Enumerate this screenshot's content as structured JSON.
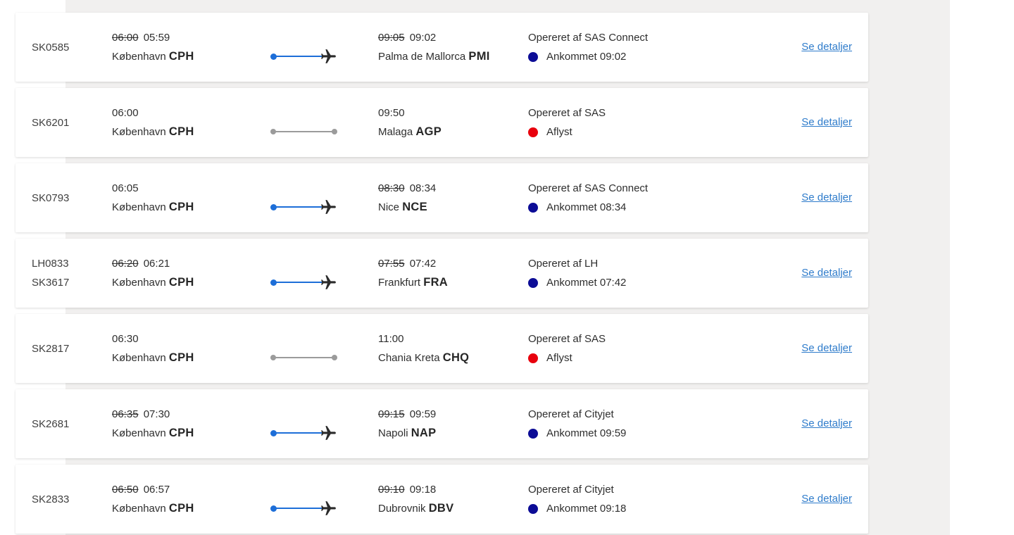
{
  "page": {
    "band_background": "#f1f0ef",
    "card_background": "#ffffff"
  },
  "colors": {
    "route_blue": "#1d6ed8",
    "route_gray": "#9b9b9b",
    "status_navy": "#0c0c96",
    "status_red": "#e8000d",
    "link_blue": "#2f7ccb",
    "text_dark": "#2e2e2e"
  },
  "labels": {
    "details_link": "Se detaljer",
    "plane_icon": "plane-icon"
  },
  "flights": [
    {
      "flight_numbers": [
        "SK0585"
      ],
      "departure": {
        "old_time": "06:00",
        "time": "05:59",
        "city": "København",
        "airport_code": "CPH"
      },
      "arrival": {
        "old_time": "09:05",
        "time": "09:02",
        "city": "Palma de Mallorca",
        "airport_code": "PMI"
      },
      "operated_by": "Opereret af SAS Connect",
      "status": {
        "label": "Ankommet 09:02",
        "type": "arrived"
      },
      "route_state": "completed"
    },
    {
      "flight_numbers": [
        "SK6201"
      ],
      "departure": {
        "old_time": null,
        "time": "06:00",
        "city": "København",
        "airport_code": "CPH"
      },
      "arrival": {
        "old_time": null,
        "time": "09:50",
        "city": "Malaga",
        "airport_code": "AGP"
      },
      "operated_by": "Opereret af SAS",
      "status": {
        "label": "Aflyst",
        "type": "cancelled"
      },
      "route_state": "cancelled"
    },
    {
      "flight_numbers": [
        "SK0793"
      ],
      "departure": {
        "old_time": null,
        "time": "06:05",
        "city": "København",
        "airport_code": "CPH"
      },
      "arrival": {
        "old_time": "08:30",
        "time": "08:34",
        "city": "Nice",
        "airport_code": "NCE"
      },
      "operated_by": "Opereret af SAS Connect",
      "status": {
        "label": "Ankommet 08:34",
        "type": "arrived"
      },
      "route_state": "completed"
    },
    {
      "flight_numbers": [
        "LH0833",
        "SK3617"
      ],
      "departure": {
        "old_time": "06:20",
        "time": "06:21",
        "city": "København",
        "airport_code": "CPH"
      },
      "arrival": {
        "old_time": "07:55",
        "time": "07:42",
        "city": "Frankfurt",
        "airport_code": "FRA"
      },
      "operated_by": "Opereret af LH",
      "status": {
        "label": "Ankommet 07:42",
        "type": "arrived"
      },
      "route_state": "completed"
    },
    {
      "flight_numbers": [
        "SK2817"
      ],
      "departure": {
        "old_time": null,
        "time": "06:30",
        "city": "København",
        "airport_code": "CPH"
      },
      "arrival": {
        "old_time": null,
        "time": "11:00",
        "city": "Chania Kreta",
        "airport_code": "CHQ"
      },
      "operated_by": "Opereret af SAS",
      "status": {
        "label": "Aflyst",
        "type": "cancelled"
      },
      "route_state": "cancelled"
    },
    {
      "flight_numbers": [
        "SK2681"
      ],
      "departure": {
        "old_time": "06:35",
        "time": "07:30",
        "city": "København",
        "airport_code": "CPH"
      },
      "arrival": {
        "old_time": "09:15",
        "time": "09:59",
        "city": "Napoli",
        "airport_code": "NAP"
      },
      "operated_by": "Opereret af Cityjet",
      "status": {
        "label": "Ankommet 09:59",
        "type": "arrived"
      },
      "route_state": "completed"
    },
    {
      "flight_numbers": [
        "SK2833"
      ],
      "departure": {
        "old_time": "06:50",
        "time": "06:57",
        "city": "København",
        "airport_code": "CPH"
      },
      "arrival": {
        "old_time": "09:10",
        "time": "09:18",
        "city": "Dubrovnik",
        "airport_code": "DBV"
      },
      "operated_by": "Opereret af Cityjet",
      "status": {
        "label": "Ankommet 09:18",
        "type": "arrived"
      },
      "route_state": "completed"
    }
  ]
}
